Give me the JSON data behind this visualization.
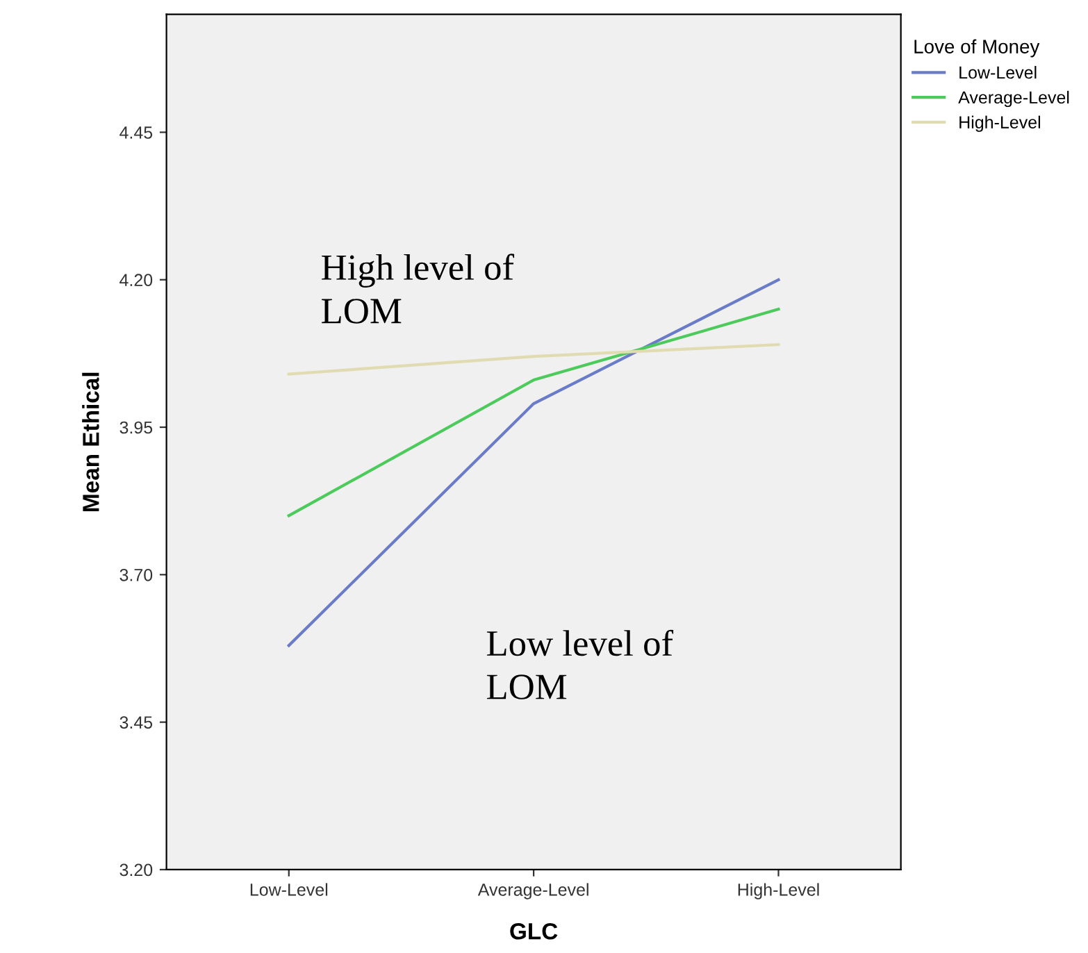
{
  "chart_data": {
    "type": "line",
    "xlabel": "GLC",
    "ylabel": "Mean Ethical",
    "legend_title": "Love of Money",
    "categories": [
      "Low-Level",
      "Average-Level",
      "High-Level"
    ],
    "series": [
      {
        "name": "Low-Level",
        "color": "#6a7bc8",
        "values": [
          3.58,
          3.99,
          4.2
        ]
      },
      {
        "name": "Average-Level",
        "color": "#4ccb5c",
        "values": [
          3.8,
          4.03,
          4.15
        ]
      },
      {
        "name": "High-Level",
        "color": "#e0dbb0",
        "values": [
          4.04,
          4.07,
          4.09
        ]
      }
    ],
    "ylim": [
      3.2,
      4.65
    ],
    "yticks": [
      {
        "value": 3.2,
        "label": "3.20"
      },
      {
        "value": 3.45,
        "label": "3.45"
      },
      {
        "value": 3.7,
        "label": "3.70"
      },
      {
        "value": 3.95,
        "label": "3.95"
      },
      {
        "value": 4.2,
        "label": "4.20"
      },
      {
        "value": 4.45,
        "label": "4.45"
      }
    ],
    "annotations": [
      "High level of\nLOM",
      "Low level of\nLOM"
    ],
    "legend": "top right",
    "grid": false,
    "marker": "none",
    "line_style": "solid"
  }
}
